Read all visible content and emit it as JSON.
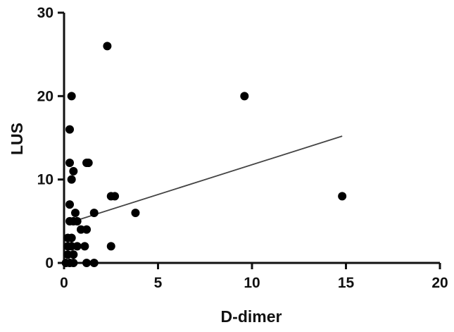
{
  "chart_data": {
    "type": "scatter",
    "title": "",
    "xlabel": "D-dimer",
    "ylabel": "LUS",
    "xlim": [
      0,
      20
    ],
    "ylim": [
      0,
      30
    ],
    "x_ticks": [
      "0",
      "5",
      "10",
      "15",
      "20"
    ],
    "y_ticks": [
      "0",
      "10",
      "20",
      "30"
    ],
    "grid": false,
    "legend": "none",
    "point_color": "#000000",
    "line_color": "#444444",
    "series": [
      {
        "points": [
          {
            "x": 2.3,
            "y": 26
          },
          {
            "x": 0.4,
            "y": 20
          },
          {
            "x": 9.6,
            "y": 20
          },
          {
            "x": 0.3,
            "y": 16
          },
          {
            "x": 0.3,
            "y": 12
          },
          {
            "x": 1.2,
            "y": 12
          },
          {
            "x": 1.3,
            "y": 12
          },
          {
            "x": 0.5,
            "y": 11
          },
          {
            "x": 0.4,
            "y": 10
          },
          {
            "x": 2.5,
            "y": 8
          },
          {
            "x": 2.7,
            "y": 8
          },
          {
            "x": 14.8,
            "y": 8
          },
          {
            "x": 0.3,
            "y": 7
          },
          {
            "x": 0.6,
            "y": 6
          },
          {
            "x": 1.6,
            "y": 6
          },
          {
            "x": 3.8,
            "y": 6
          },
          {
            "x": 0.3,
            "y": 5
          },
          {
            "x": 0.5,
            "y": 5
          },
          {
            "x": 0.7,
            "y": 5
          },
          {
            "x": 0.9,
            "y": 4
          },
          {
            "x": 1.2,
            "y": 4
          },
          {
            "x": 0.2,
            "y": 3
          },
          {
            "x": 0.4,
            "y": 3
          },
          {
            "x": 0.2,
            "y": 2
          },
          {
            "x": 0.4,
            "y": 2
          },
          {
            "x": 0.7,
            "y": 2
          },
          {
            "x": 1.1,
            "y": 2
          },
          {
            "x": 2.5,
            "y": 2
          },
          {
            "x": 0.2,
            "y": 1
          },
          {
            "x": 0.5,
            "y": 1
          },
          {
            "x": 0.1,
            "y": 0
          },
          {
            "x": 0.3,
            "y": 0
          },
          {
            "x": 0.5,
            "y": 0
          },
          {
            "x": 1.2,
            "y": 0
          },
          {
            "x": 1.6,
            "y": 0
          }
        ]
      }
    ],
    "trend_line": {
      "x": [
        0.8,
        14.8
      ],
      "y": [
        5.2,
        15.2
      ]
    }
  }
}
